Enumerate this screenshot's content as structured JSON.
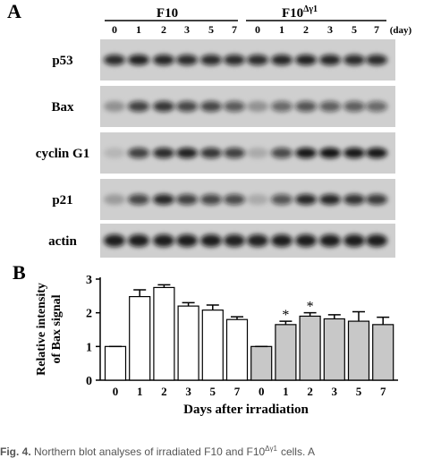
{
  "panel_a": {
    "label": "A",
    "groups": [
      {
        "label": "F10"
      },
      {
        "label": "F10",
        "sup": "Δγ1"
      }
    ],
    "days": [
      "0",
      "1",
      "2",
      "3",
      "5",
      "7",
      "0",
      "1",
      "2",
      "3",
      "5",
      "7"
    ],
    "day_unit": "(day)",
    "rows": [
      "p53",
      "Bax",
      "cyclin G1",
      "p21",
      "actin"
    ]
  },
  "chart_data": {
    "type": "bar",
    "label": "B",
    "ylabel": [
      "Relative intensity",
      "of Bax signal"
    ],
    "xlabel": "Days after irradiation",
    "categories": [
      "0",
      "1",
      "2",
      "3",
      "5",
      "7",
      "0",
      "1",
      "2",
      "3",
      "5",
      "7"
    ],
    "series": [
      {
        "color": "#ffffff",
        "values": [
          1.0,
          2.48,
          2.75,
          2.2,
          2.08,
          1.8,
          null,
          null,
          null,
          null,
          null,
          null
        ],
        "errors": [
          0,
          0.2,
          0.08,
          0.1,
          0.15,
          0.08,
          null,
          null,
          null,
          null,
          null,
          null
        ]
      },
      {
        "color": "#c8c8c8",
        "values": [
          null,
          null,
          null,
          null,
          null,
          null,
          1.0,
          1.65,
          1.9,
          1.82,
          1.75,
          1.65
        ],
        "errors": [
          null,
          null,
          null,
          null,
          null,
          null,
          0,
          0.1,
          0.1,
          0.12,
          0.28,
          0.22
        ],
        "value_annotations": [
          null,
          null,
          null,
          null,
          null,
          null,
          null,
          "*",
          "*",
          null,
          null,
          null
        ]
      }
    ],
    "ylim": [
      0,
      3
    ],
    "yticks": [
      0,
      1,
      2,
      3
    ]
  },
  "caption": {
    "label": "Fig. 4.",
    "text": "Northern blot analyses of irradiated F10 and F10",
    "sup": "Δγ1",
    "tail": "cells. A"
  }
}
